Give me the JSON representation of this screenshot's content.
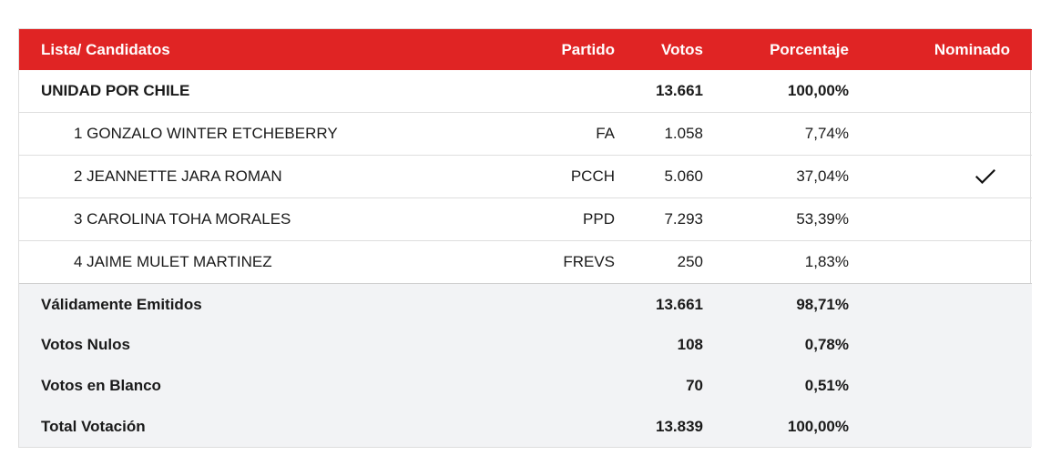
{
  "headers": {
    "name": "Lista/ Candidatos",
    "party": "Partido",
    "votes": "Votos",
    "percent": "Porcentaje",
    "nominated": "Nominado"
  },
  "list": {
    "name": "UNIDAD POR CHILE",
    "votes": "13.661",
    "percent": "100,00%"
  },
  "candidates": [
    {
      "name": "1 GONZALO WINTER ETCHEBERRY",
      "party": "FA",
      "votes": "1.058",
      "percent": "7,74%",
      "nominated": false
    },
    {
      "name": "2 JEANNETTE JARA ROMAN",
      "party": "PCCH",
      "votes": "5.060",
      "percent": "37,04%",
      "nominated": true
    },
    {
      "name": "3 CAROLINA TOHA MORALES",
      "party": "PPD",
      "votes": "7.293",
      "percent": "53,39%",
      "nominated": false
    },
    {
      "name": "4 JAIME MULET MARTINEZ",
      "party": "FREVS",
      "votes": "250",
      "percent": "1,83%",
      "nominated": false
    }
  ],
  "totals": [
    {
      "label": "Válidamente Emitidos",
      "votes": "13.661",
      "percent": "98,71%"
    },
    {
      "label": "Votos Nulos",
      "votes": "108",
      "percent": "0,78%"
    },
    {
      "label": "Votos en Blanco",
      "votes": "70",
      "percent": "0,51%"
    },
    {
      "label": "Total Votación",
      "votes": "13.839",
      "percent": "100,00%"
    }
  ],
  "icons": {
    "nominated": "checkmark-icon"
  },
  "colors": {
    "header_bg": "#e02424",
    "header_text": "#ffffff",
    "totals_bg": "#f2f3f5"
  }
}
